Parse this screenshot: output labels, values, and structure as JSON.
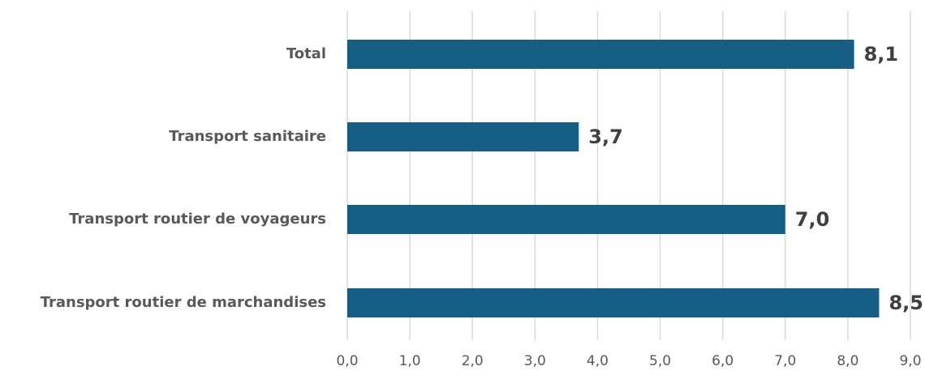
{
  "chart_data": {
    "type": "bar",
    "orientation": "horizontal",
    "categories": [
      "Total",
      "Transport sanitaire",
      "Transport routier de voyageurs",
      "Transport routier de marchandises"
    ],
    "values": [
      8.1,
      3.7,
      7.0,
      8.5
    ],
    "data_labels": [
      "8,1",
      "3,7",
      "7,0",
      "8,5"
    ],
    "x_ticks": [
      "0,0",
      "1,0",
      "2,0",
      "3,0",
      "4,0",
      "5,0",
      "6,0",
      "7,0",
      "8,0",
      "9,0"
    ],
    "xlim": [
      0,
      9
    ],
    "grid": "vertical",
    "bar_color": "#175e84",
    "title": "",
    "xlabel": "",
    "ylabel": ""
  }
}
